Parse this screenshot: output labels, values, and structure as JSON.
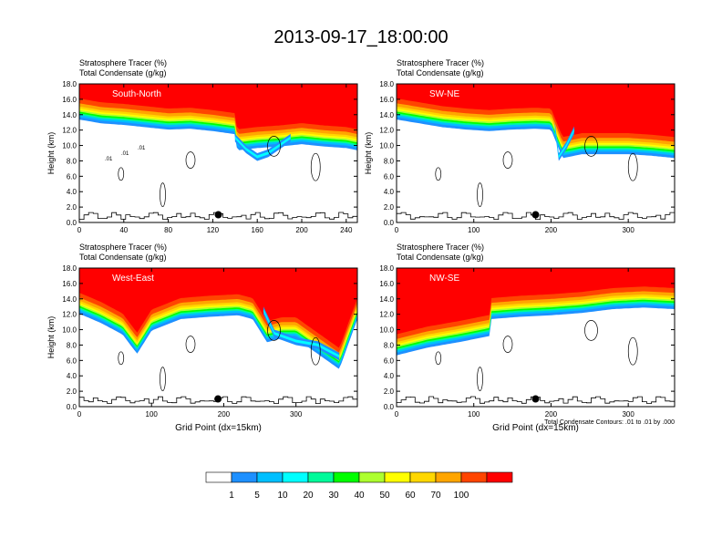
{
  "title": "2013-09-17_18:00:00",
  "colorbar": {
    "labels": [
      "1",
      "5",
      "10",
      "20",
      "30",
      "40",
      "50",
      "60",
      "70",
      "100"
    ],
    "colors": [
      "#ffffff",
      "#1e90ff",
      "#00bfff",
      "#00ffff",
      "#00fa9a",
      "#00ff00",
      "#adff2f",
      "#ffff00",
      "#ffd700",
      "#ffa500",
      "#ff4500",
      "#ff0000"
    ]
  },
  "chart_data": [
    {
      "type": "heatmap",
      "panel_label": "South-North",
      "subtitle_lines": [
        "Stratosphere Tracer   (%)",
        "Total Condensate   (g/kg)"
      ],
      "ylabel": "Height (km)",
      "xlabel": "",
      "xlim": [
        0,
        250
      ],
      "ylim": [
        0,
        18
      ],
      "xticks": [
        "0",
        "40",
        "80",
        "120",
        "160",
        "200",
        "240"
      ],
      "yticks": [
        "0.0",
        "2.0",
        "4.0",
        "6.0",
        "8.0",
        "10.0",
        "12.0",
        "14.0",
        "16.0",
        "18.0"
      ],
      "contour_labels": [
        ".01",
        ".01",
        ".01"
      ],
      "marker": {
        "x": 125,
        "y": 1.0
      },
      "tropopause_profile": {
        "x": [
          0,
          20,
          40,
          60,
          80,
          100,
          120,
          140,
          142,
          160,
          180,
          200,
          220,
          240,
          250
        ],
        "y": [
          15.5,
          15.0,
          14.8,
          14.5,
          14.2,
          14.3,
          14.0,
          13.6,
          11.5,
          11.8,
          12.0,
          12.3,
          12.0,
          11.8,
          11.5
        ]
      },
      "intrusion": {
        "x": [
          140,
          150,
          160,
          170,
          180,
          190
        ],
        "y": [
          10.5,
          9.0,
          8.0,
          8.5,
          9.5,
          10.5
        ]
      }
    },
    {
      "type": "heatmap",
      "panel_label": "SW-NE",
      "subtitle_lines": [
        "Stratosphere Tracer   (%)",
        "Total Condensate   (g/kg)"
      ],
      "ylabel": "Height (km)",
      "xlabel": "",
      "xlim": [
        0,
        360
      ],
      "ylim": [
        0,
        18
      ],
      "xticks": [
        "0",
        "100",
        "200",
        "300"
      ],
      "yticks": [
        "0.0",
        "2.0",
        "4.0",
        "6.0",
        "8.0",
        "10.0",
        "12.0",
        "14.0",
        "16.0",
        "18.0"
      ],
      "contour_labels": [],
      "marker": {
        "x": 180,
        "y": 1.0
      },
      "tropopause_profile": {
        "x": [
          0,
          30,
          60,
          90,
          120,
          150,
          180,
          200,
          215,
          240,
          270,
          300,
          330,
          360
        ],
        "y": [
          15.5,
          15.0,
          14.5,
          14.2,
          14.0,
          14.2,
          14.3,
          14.2,
          10.5,
          11.0,
          11.0,
          11.0,
          10.8,
          10.5
        ]
      },
      "intrusion": {
        "x": [
          205,
          210,
          220,
          230
        ],
        "y": [
          12.0,
          8.0,
          9.5,
          11.5
        ]
      }
    },
    {
      "type": "heatmap",
      "panel_label": "West-East",
      "subtitle_lines": [
        "Stratosphere Tracer   (%)",
        "Total Condensate   (g/kg)"
      ],
      "ylabel": "Height (km)",
      "xlabel": "Grid Point (dx=15km)",
      "xlim": [
        0,
        385
      ],
      "ylim": [
        0,
        18
      ],
      "xticks": [
        "0",
        "100",
        "200",
        "300"
      ],
      "yticks": [
        "0.0",
        "2.0",
        "4.0",
        "6.0",
        "8.0",
        "10.0",
        "12.0",
        "14.0",
        "16.0",
        "18.0"
      ],
      "contour_labels": [],
      "marker": {
        "x": 192,
        "y": 1.0
      },
      "tropopause_profile": {
        "x": [
          0,
          30,
          60,
          80,
          100,
          140,
          180,
          220,
          240,
          260,
          280,
          300,
          330,
          360,
          385
        ],
        "y": [
          14.2,
          13.0,
          11.5,
          9.0,
          12.0,
          13.5,
          13.8,
          14.0,
          13.5,
          10.5,
          11.0,
          11.0,
          9.0,
          7.0,
          13.5
        ]
      },
      "intrusion": {
        "x": [
          255,
          270,
          300,
          330,
          360
        ],
        "y": [
          12.0,
          9.0,
          8.0,
          7.5,
          6.0
        ]
      }
    },
    {
      "type": "heatmap",
      "panel_label": "NW-SE",
      "subtitle_lines": [
        "Stratosphere Tracer   (%)",
        "Total Condensate   (g/kg)"
      ],
      "ylabel": "",
      "xlabel": "Grid Point (dx=15km)",
      "xlim": [
        0,
        360
      ],
      "ylim": [
        0,
        18
      ],
      "xticks": [
        "0",
        "100",
        "200",
        "300"
      ],
      "yticks": [
        "0.0",
        "2.0",
        "4.0",
        "6.0",
        "8.0",
        "10.0",
        "12.0",
        "14.0",
        "16.0",
        "18.0"
      ],
      "contour_labels": [],
      "marker": {
        "x": 180,
        "y": 1.0
      },
      "tropopause_profile": {
        "x": [
          0,
          40,
          80,
          120,
          122,
          160,
          200,
          240,
          280,
          320,
          360
        ],
        "y": [
          8.8,
          9.8,
          10.5,
          11.3,
          13.5,
          13.8,
          14.0,
          14.3,
          14.8,
          15.0,
          14.8
        ]
      },
      "intrusion": {
        "x": [],
        "y": []
      },
      "footnote": "Total Condensate Contours: .01 to .01 by .000"
    }
  ]
}
